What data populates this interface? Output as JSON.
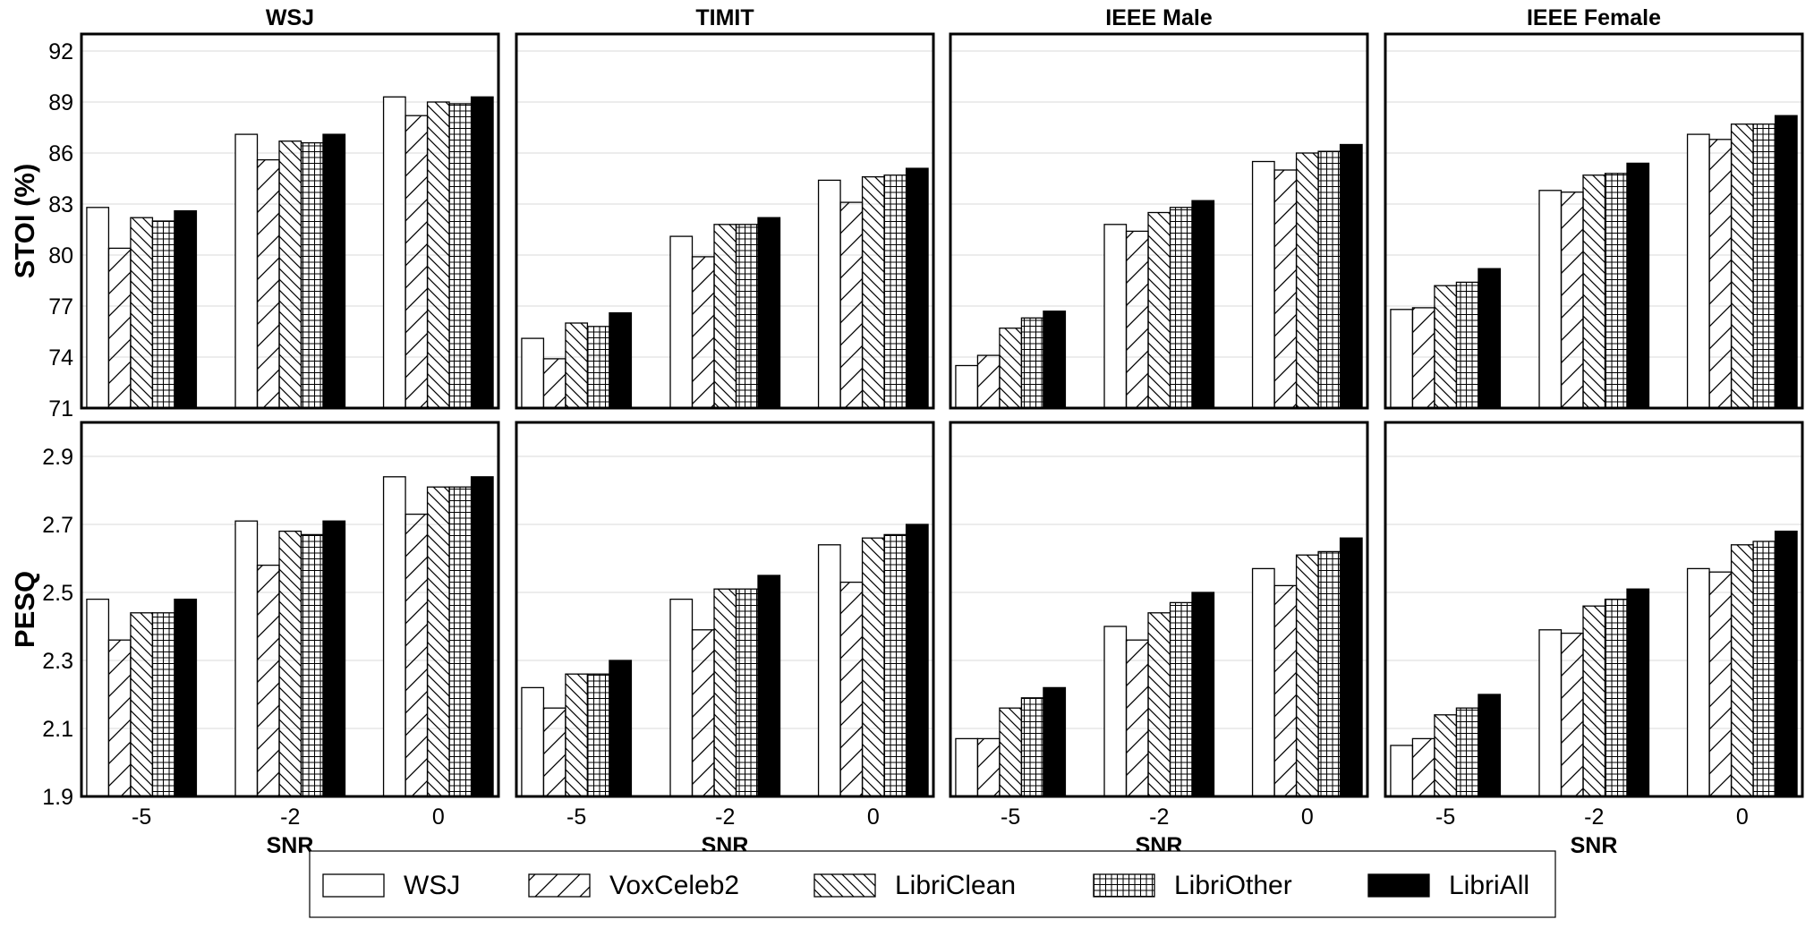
{
  "chart_data": {
    "type": "bar",
    "legend": {
      "placement": "bottom-center"
    },
    "x": {
      "label": "SNR",
      "categories": [
        "-5",
        "-2",
        "0"
      ]
    },
    "series": [
      {
        "name": "WSJ",
        "pattern": "none",
        "fill": "#ffffff"
      },
      {
        "name": "VoxCeleb2",
        "pattern": "diagonal-forward",
        "fill": "#ffffff"
      },
      {
        "name": "LibriClean",
        "pattern": "diagonal-backward",
        "fill": "#ffffff"
      },
      {
        "name": "LibriOther",
        "pattern": "grid",
        "fill": "#ffffff"
      },
      {
        "name": "LibriAll",
        "pattern": "solid",
        "fill": "#000000"
      }
    ],
    "columns": [
      "WSJ",
      "TIMIT",
      "IEEE Male",
      "IEEE Female"
    ],
    "rows": [
      {
        "ylabel": "STOI (%)",
        "ylim": [
          71,
          93
        ],
        "yticks": [
          "71",
          "74",
          "77",
          "80",
          "83",
          "86",
          "89",
          "92"
        ],
        "panels": [
          {
            "title": "WSJ",
            "values": [
              [
                82.8,
                87.1,
                89.3
              ],
              [
                80.4,
                85.6,
                88.2
              ],
              [
                82.2,
                86.7,
                89.0
              ],
              [
                82.0,
                86.6,
                88.9
              ],
              [
                82.6,
                87.1,
                89.3
              ]
            ]
          },
          {
            "title": "TIMIT",
            "values": [
              [
                75.1,
                81.1,
                84.4
              ],
              [
                73.9,
                79.9,
                83.1
              ],
              [
                76.0,
                81.8,
                84.6
              ],
              [
                75.8,
                81.8,
                84.7
              ],
              [
                76.6,
                82.2,
                85.1
              ]
            ]
          },
          {
            "title": "IEEE Male",
            "values": [
              [
                73.5,
                81.8,
                85.5
              ],
              [
                74.1,
                81.4,
                85.0
              ],
              [
                75.7,
                82.5,
                86.0
              ],
              [
                76.3,
                82.8,
                86.1
              ],
              [
                76.7,
                83.2,
                86.5
              ]
            ]
          },
          {
            "title": "IEEE Female",
            "values": [
              [
                76.8,
                83.8,
                87.1
              ],
              [
                76.9,
                83.7,
                86.8
              ],
              [
                78.2,
                84.7,
                87.7
              ],
              [
                78.4,
                84.8,
                87.7
              ],
              [
                79.2,
                85.4,
                88.2
              ]
            ]
          }
        ]
      },
      {
        "ylabel": "PESQ",
        "ylim": [
          1.9,
          3.0
        ],
        "yticks": [
          "1.9",
          "2.1",
          "2.3",
          "2.5",
          "2.7",
          "2.9"
        ],
        "panels": [
          {
            "title": "WSJ",
            "values": [
              [
                2.48,
                2.71,
                2.84
              ],
              [
                2.36,
                2.58,
                2.73
              ],
              [
                2.44,
                2.68,
                2.81
              ],
              [
                2.44,
                2.67,
                2.81
              ],
              [
                2.48,
                2.71,
                2.84
              ]
            ]
          },
          {
            "title": "TIMIT",
            "values": [
              [
                2.22,
                2.48,
                2.64
              ],
              [
                2.16,
                2.39,
                2.53
              ],
              [
                2.26,
                2.51,
                2.66
              ],
              [
                2.26,
                2.51,
                2.67
              ],
              [
                2.3,
                2.55,
                2.7
              ]
            ]
          },
          {
            "title": "IEEE Male",
            "values": [
              [
                2.07,
                2.4,
                2.57
              ],
              [
                2.07,
                2.36,
                2.52
              ],
              [
                2.16,
                2.44,
                2.61
              ],
              [
                2.19,
                2.47,
                2.62
              ],
              [
                2.22,
                2.5,
                2.66
              ]
            ]
          },
          {
            "title": "IEEE Female",
            "values": [
              [
                2.05,
                2.39,
                2.57
              ],
              [
                2.07,
                2.38,
                2.56
              ],
              [
                2.14,
                2.46,
                2.64
              ],
              [
                2.16,
                2.48,
                2.65
              ],
              [
                2.2,
                2.51,
                2.68
              ]
            ]
          }
        ]
      }
    ],
    "grid": {
      "horizontal": true,
      "vertical": false
    }
  }
}
